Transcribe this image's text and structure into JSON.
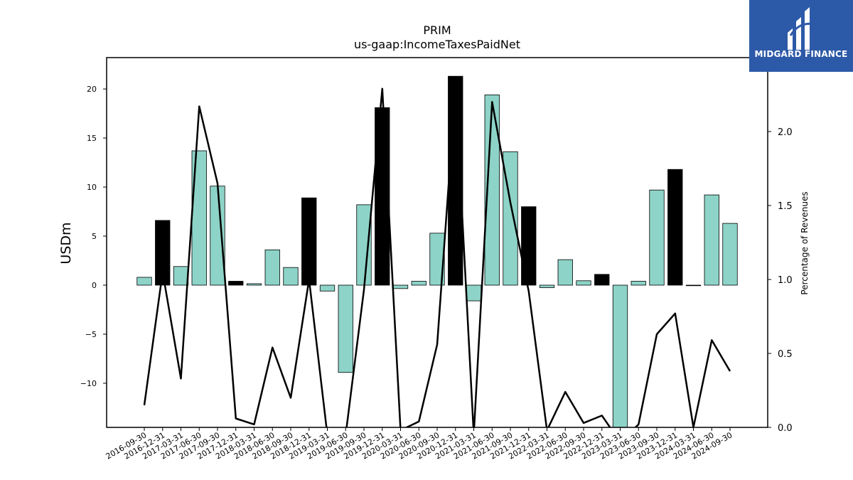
{
  "chart_data": {
    "type": "bar",
    "title": "PRIM",
    "subtitle": "us-gaap:IncomeTaxesPaidNet",
    "ylabel": "USDm",
    "y2label": "Percentage of Revenues",
    "ylim": [
      -14.5,
      23.2
    ],
    "y2lim": [
      0.0,
      2.5
    ],
    "yticks": [
      -10,
      -5,
      0,
      5,
      10,
      15,
      20
    ],
    "y2ticks": [
      0.0,
      0.5,
      1.0,
      1.5,
      2.0
    ],
    "categories": [
      "2016-09-30",
      "2016-12-31",
      "2017-03-31",
      "2017-06-30",
      "2017-09-30",
      "2017-12-31",
      "2018-03-31",
      "2018-06-30",
      "2018-09-30",
      "2018-12-31",
      "2019-03-31",
      "2019-06-30",
      "2019-09-30",
      "2019-12-31",
      "2020-03-31",
      "2020-06-30",
      "2020-09-30",
      "2020-12-31",
      "2021-03-31",
      "2021-06-30",
      "2021-09-30",
      "2021-12-31",
      "2022-03-31",
      "2022-06-30",
      "2022-09-30",
      "2022-12-31",
      "2023-03-31",
      "2023-06-30",
      "2023-09-30",
      "2023-12-31",
      "2024-03-31",
      "2024-06-30",
      "2024-09-30"
    ],
    "series": [
      {
        "kind": "bar",
        "values": [
          0.8,
          6.6,
          1.9,
          13.7,
          10.1,
          0.4,
          0.15,
          3.6,
          1.8,
          8.9,
          -0.6,
          -8.9,
          8.2,
          18.1,
          -0.35,
          0.4,
          5.3,
          21.3,
          -1.6,
          19.4,
          13.6,
          8.0,
          -0.25,
          2.6,
          0.45,
          1.1,
          -14.5,
          0.4,
          9.7,
          11.8,
          0.0,
          9.2,
          6.3
        ],
        "colors": [
          "#8dd3c7",
          "#000000",
          "#8dd3c7",
          "#8dd3c7",
          "#8dd3c7",
          "#000000",
          "#8dd3c7",
          "#8dd3c7",
          "#8dd3c7",
          "#000000",
          "#8dd3c7",
          "#8dd3c7",
          "#8dd3c7",
          "#000000",
          "#8dd3c7",
          "#8dd3c7",
          "#8dd3c7",
          "#000000",
          "#8dd3c7",
          "#8dd3c7",
          "#8dd3c7",
          "#000000",
          "#8dd3c7",
          "#8dd3c7",
          "#8dd3c7",
          "#000000",
          "#8dd3c7",
          "#8dd3c7",
          "#8dd3c7",
          "#000000",
          "#8dd3c7",
          "#8dd3c7",
          "#8dd3c7"
        ]
      },
      {
        "kind": "line",
        "axis": "right",
        "color": "#000000",
        "values": [
          0.15,
          1.05,
          0.33,
          2.17,
          1.65,
          0.06,
          0.02,
          0.54,
          0.2,
          1.0,
          -0.05,
          -0.05,
          0.93,
          2.29,
          -0.02,
          0.04,
          0.56,
          2.29,
          -0.05,
          2.2,
          1.52,
          0.92,
          -0.02,
          0.24,
          0.03,
          0.08,
          -0.1,
          0.02,
          0.63,
          0.77,
          0.0,
          0.59,
          0.38
        ]
      }
    ],
    "grid": false
  },
  "logo": {
    "text": "MIDGARD FINANCE"
  }
}
